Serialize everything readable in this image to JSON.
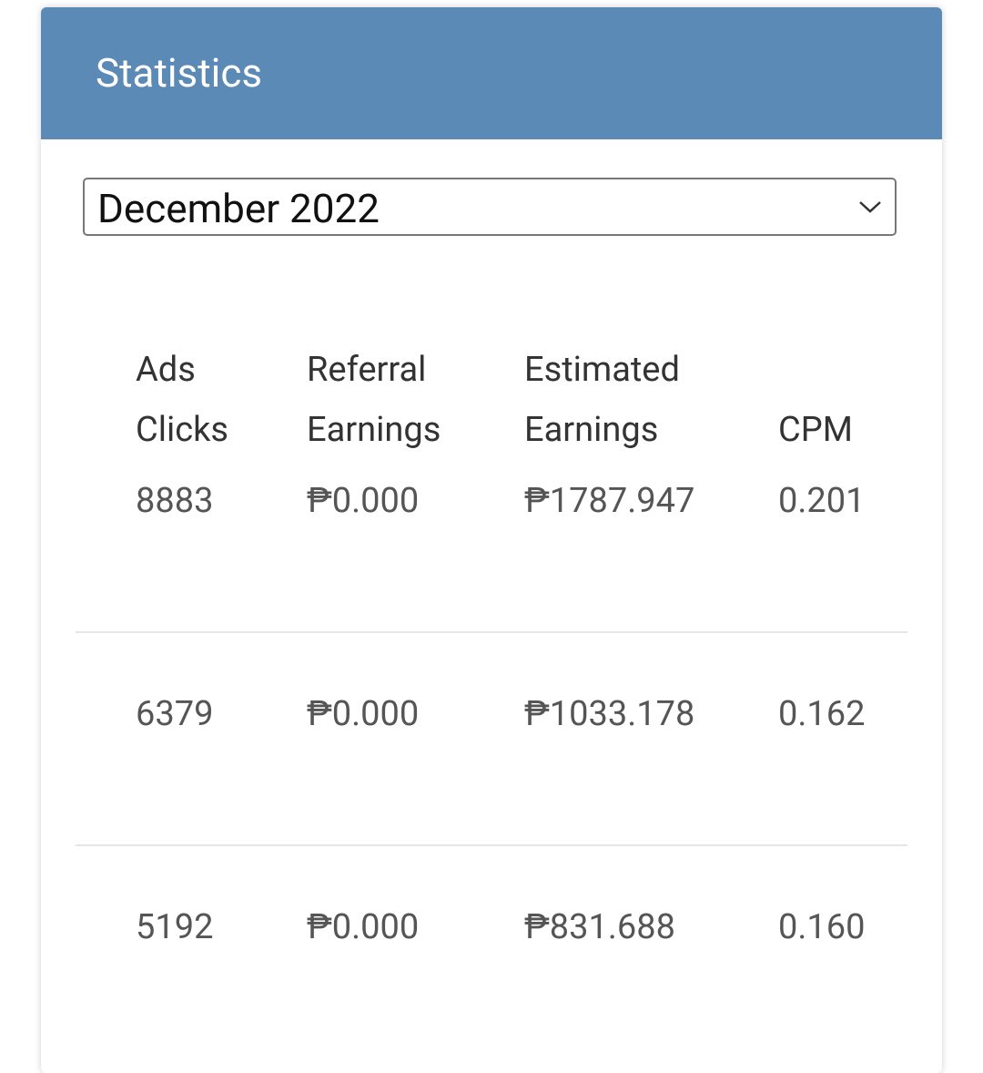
{
  "header": {
    "title": "Statistics"
  },
  "filter": {
    "selected": "December 2022"
  },
  "table": {
    "columns": [
      "Ads Clicks",
      "Referral Earnings",
      "Estimated Earnings",
      "CPM"
    ],
    "rows": [
      [
        "8883",
        "₱0.000",
        "₱1787.947",
        "0.201"
      ],
      [
        "6379",
        "₱0.000",
        "₱1033.178",
        "0.162"
      ],
      [
        "5192",
        "₱0.000",
        "₱831.688",
        "0.160"
      ]
    ]
  }
}
